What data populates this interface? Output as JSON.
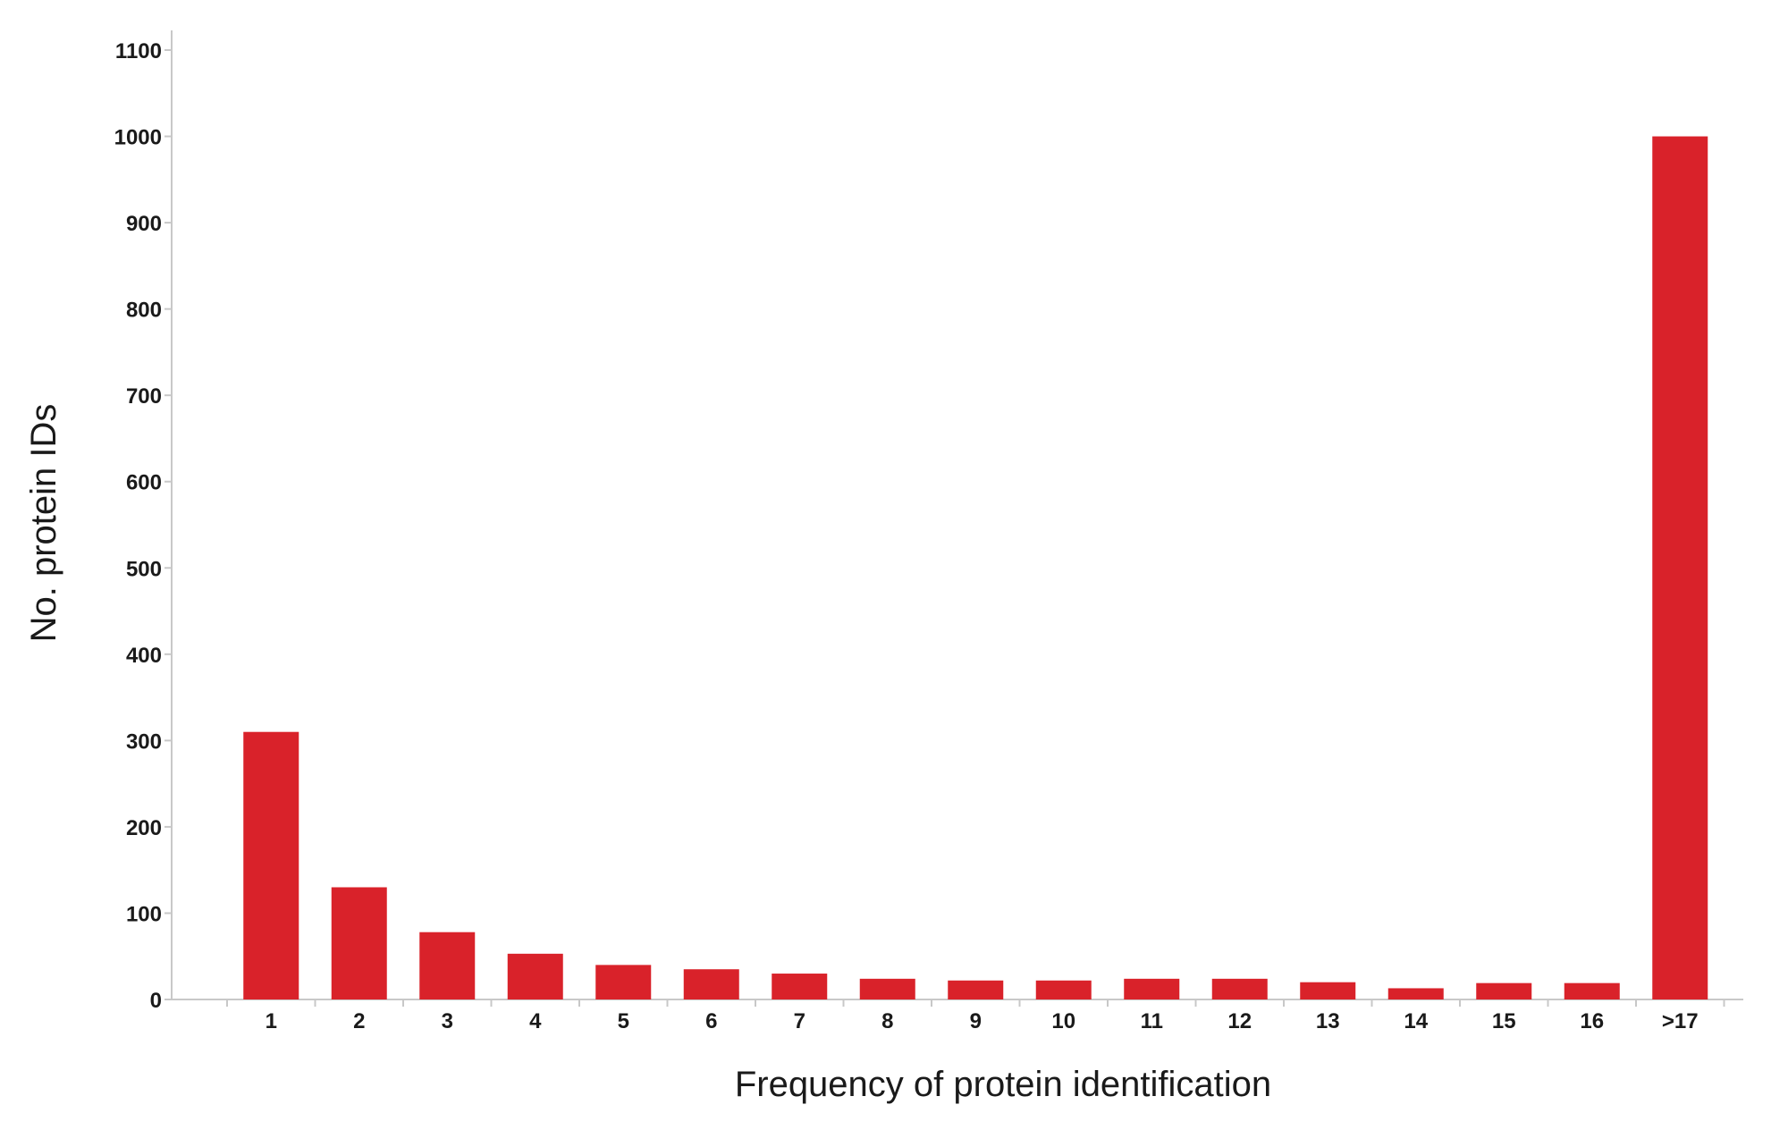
{
  "chart_data": {
    "type": "bar",
    "title": "",
    "xlabel": "Frequency of protein identification",
    "ylabel": "No. protein IDs",
    "categories": [
      "1",
      "2",
      "3",
      "4",
      "5",
      "6",
      "7",
      "8",
      "9",
      "10",
      "11",
      "12",
      "13",
      "14",
      "15",
      "16",
      ">17"
    ],
    "values": [
      310,
      130,
      78,
      53,
      40,
      35,
      30,
      24,
      22,
      22,
      24,
      24,
      20,
      13,
      19,
      19,
      1000
    ],
    "ylim": [
      0,
      1100
    ],
    "yticks": [
      0,
      100,
      200,
      300,
      400,
      500,
      600,
      700,
      800,
      900,
      1000,
      1100
    ],
    "grid": false,
    "legend": "none",
    "colors": {
      "bar": "#d9222a",
      "axis": "#c8c8c8",
      "text": "#1a1a1a"
    }
  }
}
